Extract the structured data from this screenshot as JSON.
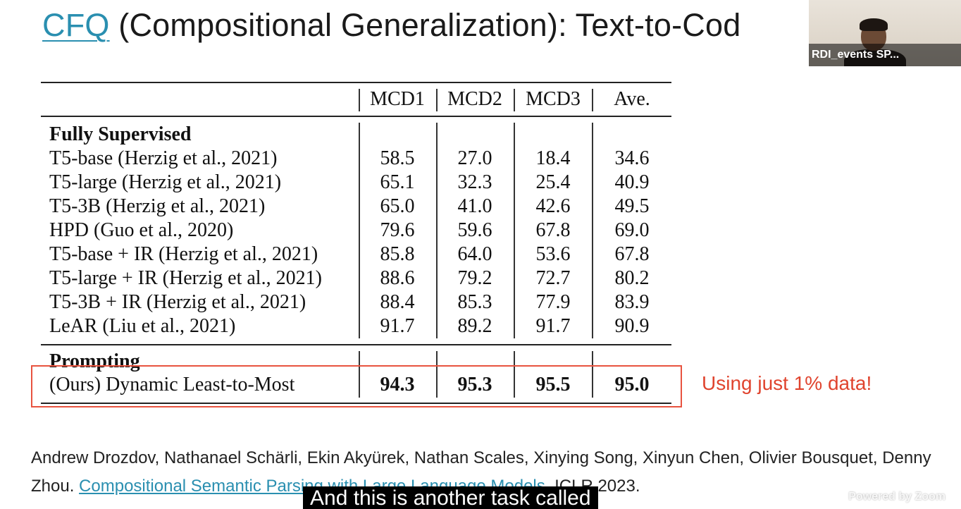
{
  "slide": {
    "title_link": "CFQ",
    "title_rest": " (Compositional Generalization): Text-to-Cod"
  },
  "table": {
    "columns": [
      "MCD1",
      "MCD2",
      "MCD3",
      "Ave."
    ],
    "sections": [
      {
        "heading": "Fully Supervised",
        "rows": [
          {
            "method": "T5-base (Herzig et al., 2021)",
            "values": [
              "58.5",
              "27.0",
              "18.4",
              "34.6"
            ]
          },
          {
            "method": "T5-large (Herzig et al., 2021)",
            "values": [
              "65.1",
              "32.3",
              "25.4",
              "40.9"
            ]
          },
          {
            "method": "T5-3B (Herzig et al., 2021)",
            "values": [
              "65.0",
              "41.0",
              "42.6",
              "49.5"
            ]
          },
          {
            "method": "HPD (Guo et al., 2020)",
            "values": [
              "79.6",
              "59.6",
              "67.8",
              "69.0"
            ]
          },
          {
            "method": "T5-base + IR (Herzig et al., 2021)",
            "values": [
              "85.8",
              "64.0",
              "53.6",
              "67.8"
            ]
          },
          {
            "method": "T5-large + IR (Herzig et al., 2021)",
            "values": [
              "88.6",
              "79.2",
              "72.7",
              "80.2"
            ]
          },
          {
            "method": "T5-3B + IR (Herzig et al., 2021)",
            "values": [
              "88.4",
              "85.3",
              "77.9",
              "83.9"
            ]
          },
          {
            "method": "LeAR (Liu et al., 2021)",
            "values": [
              "91.7",
              "89.2",
              "91.7",
              "90.9"
            ]
          }
        ]
      },
      {
        "heading": "Prompting",
        "rows": [
          {
            "method": "(Ours) Dynamic Least-to-Most",
            "values": [
              "94.3",
              "95.3",
              "95.5",
              "95.0"
            ]
          }
        ]
      }
    ]
  },
  "callout": "Using just 1% data!",
  "citation": {
    "authors": "Andrew Drozdov, Nathanael Schärli, Ekin Akyürek, Nathan Scales, Xinying Song, Xinyun Chen, Olivier Bousquet, Denny Zhou. ",
    "paper_title": "Compositional Semantic Parsing with Large Language Models",
    "venue": ". ICLR 2023."
  },
  "video": {
    "participant_name": "RDI_events SP..."
  },
  "caption": "And this is another task called",
  "watermark": "Powered by Zoom",
  "colors": {
    "link": "#2a8fb0",
    "highlight": "#e8533f",
    "callout": "#e0442e"
  }
}
